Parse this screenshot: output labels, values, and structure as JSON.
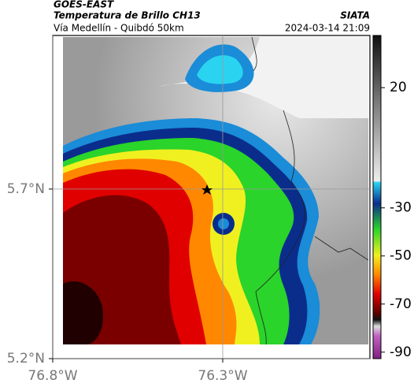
{
  "header": {
    "title": "GOES-EAST",
    "subtitle": "Temperatura de Brillo CH13",
    "source": "SIATA",
    "route": "Vía Medellín - Quibdó 50km",
    "datetime": "2024-03-14 21:09"
  },
  "map": {
    "xlim": [
      -76.8,
      -75.867
    ],
    "ylim": [
      5.2,
      6.153
    ],
    "xticks": [
      {
        "value": -76.8,
        "label": "76.8°W"
      },
      {
        "value": -76.3,
        "label": "76.3°W"
      }
    ],
    "yticks": [
      {
        "value": 5.2,
        "label": "5.2°N"
      },
      {
        "value": 5.7,
        "label": "5.7°N"
      }
    ],
    "grid": true
  },
  "colorbar": {
    "lim": [
      -92.7,
      41.7
    ],
    "ticks": [
      20,
      -30,
      -50,
      -70,
      -90
    ]
  }
}
